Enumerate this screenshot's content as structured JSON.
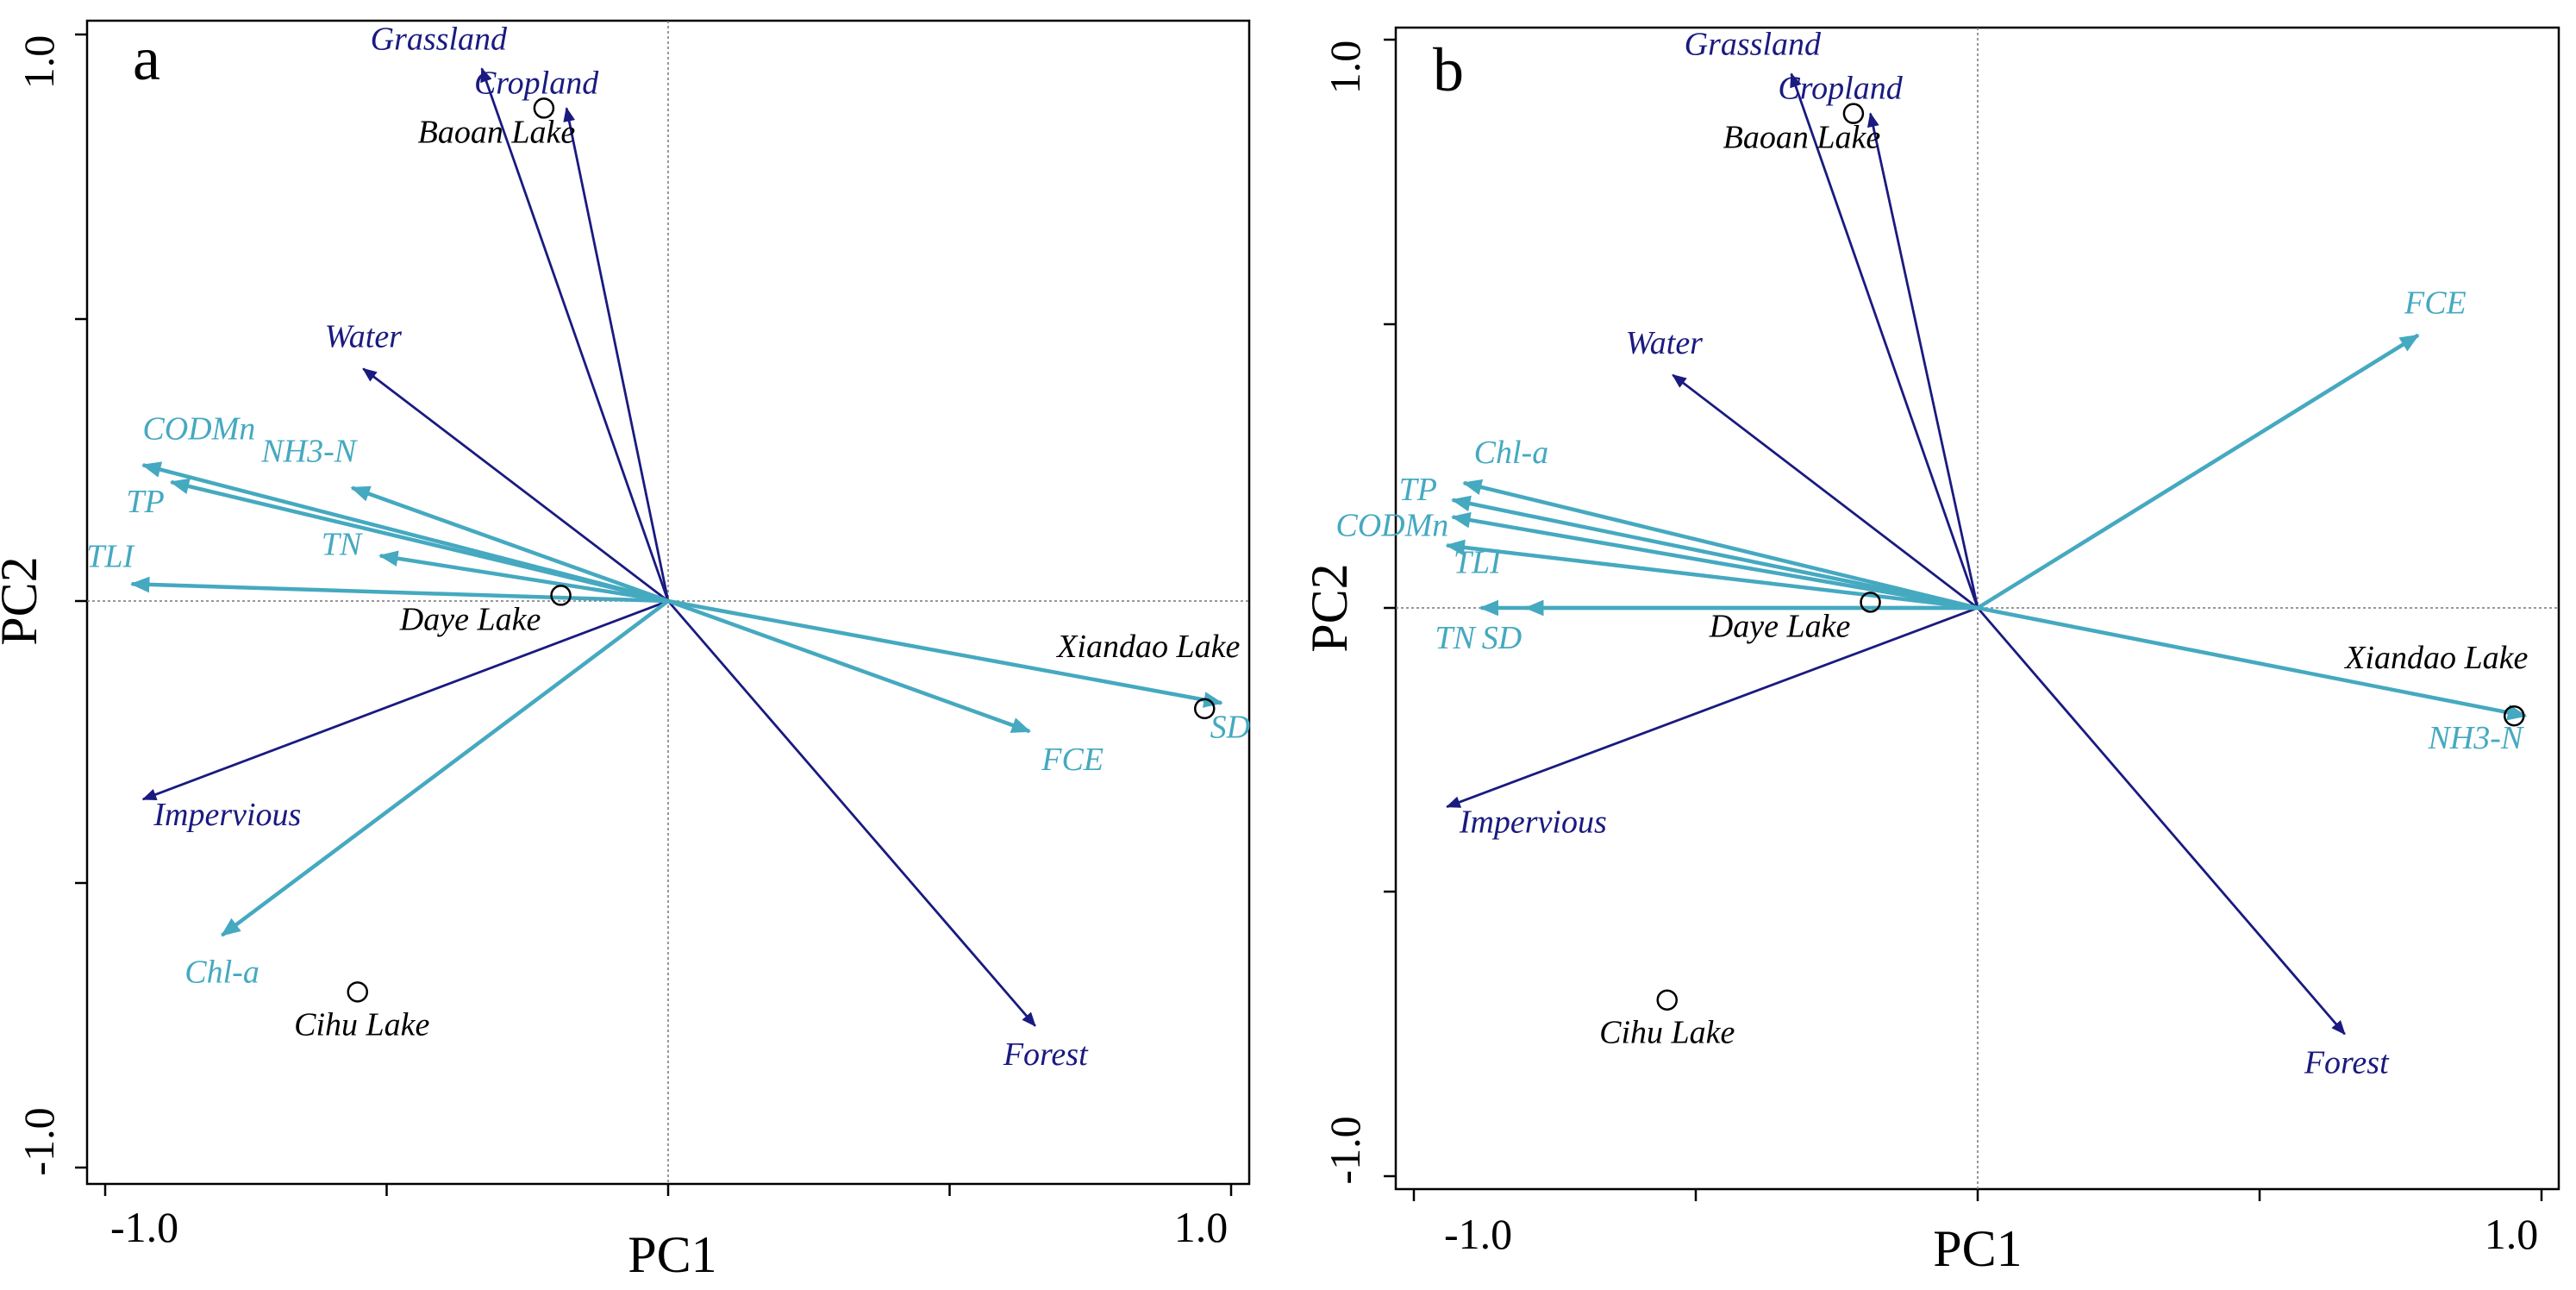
{
  "chart_data": [
    {
      "type": "biplot",
      "panel_label": "a",
      "xlabel": "PC1",
      "ylabel": "PC2",
      "xlim": [
        -1.0,
        1.0
      ],
      "ylim": [
        -1.0,
        1.0
      ],
      "x_tick_labels": [
        "-1.0",
        "1.0"
      ],
      "y_tick_labels": [
        "1.0",
        "-1.0"
      ],
      "colors": {
        "land_use": "#1a1a80",
        "water_quality": "#45a9c0"
      },
      "vectors": [
        {
          "name": "Grassland",
          "group": "land_use",
          "x": -0.33,
          "y": 0.94
        },
        {
          "name": "Cropland",
          "group": "land_use",
          "x": -0.18,
          "y": 0.87
        },
        {
          "name": "Water",
          "group": "land_use",
          "x": -0.54,
          "y": 0.41
        },
        {
          "name": "Impervious",
          "group": "land_use",
          "x": -0.93,
          "y": -0.35
        },
        {
          "name": "Forest",
          "group": "land_use",
          "x": 0.65,
          "y": -0.75
        },
        {
          "name": "CODMn",
          "group": "water_quality",
          "x": -0.93,
          "y": 0.24
        },
        {
          "name": "NH3-N",
          "group": "water_quality",
          "x": -0.56,
          "y": 0.2
        },
        {
          "name": "TP",
          "group": "water_quality",
          "x": -0.88,
          "y": 0.21
        },
        {
          "name": "TN",
          "group": "water_quality",
          "x": -0.51,
          "y": 0.08
        },
        {
          "name": "TLI",
          "group": "water_quality",
          "x": -0.95,
          "y": 0.03
        },
        {
          "name": "Chl-a",
          "group": "water_quality",
          "x": -0.79,
          "y": -0.59
        },
        {
          "name": "FCE",
          "group": "water_quality",
          "x": 0.64,
          "y": -0.23
        },
        {
          "name": "SD",
          "group": "water_quality",
          "x": 0.98,
          "y": -0.18
        }
      ],
      "sites": [
        {
          "name": "Baoan Lake",
          "x": -0.22,
          "y": 0.87
        },
        {
          "name": "Daye Lake",
          "x": -0.19,
          "y": 0.01
        },
        {
          "name": "Xiandao Lake",
          "x": 0.95,
          "y": -0.19
        },
        {
          "name": "Cihu Lake",
          "x": -0.55,
          "y": -0.69
        }
      ]
    },
    {
      "type": "biplot",
      "panel_label": "b",
      "xlabel": "PC1",
      "ylabel": "PC2",
      "xlim": [
        -1.0,
        1.0
      ],
      "ylim": [
        -1.0,
        1.0
      ],
      "x_tick_labels": [
        "-1.0",
        "1.0"
      ],
      "y_tick_labels": [
        "1.0",
        "-1.0"
      ],
      "colors": {
        "land_use": "#1a1a80",
        "water_quality": "#45a9c0"
      },
      "vectors": [
        {
          "name": "Grassland",
          "group": "land_use",
          "x": -0.33,
          "y": 0.94
        },
        {
          "name": "Cropland",
          "group": "land_use",
          "x": -0.19,
          "y": 0.87
        },
        {
          "name": "Water",
          "group": "land_use",
          "x": -0.54,
          "y": 0.41
        },
        {
          "name": "Impervious",
          "group": "land_use",
          "x": -0.94,
          "y": -0.35
        },
        {
          "name": "Forest",
          "group": "land_use",
          "x": 0.65,
          "y": -0.75
        },
        {
          "name": "FCE",
          "group": "water_quality",
          "x": 0.78,
          "y": 0.48
        },
        {
          "name": "Chl-a",
          "group": "water_quality",
          "x": -0.91,
          "y": 0.22
        },
        {
          "name": "TP",
          "group": "water_quality",
          "x": -0.93,
          "y": 0.19
        },
        {
          "name": "CODMn",
          "group": "water_quality",
          "x": -0.93,
          "y": 0.16
        },
        {
          "name": "TLI",
          "group": "water_quality",
          "x": -0.94,
          "y": 0.11
        },
        {
          "name": "TN",
          "group": "water_quality",
          "x": -0.88,
          "y": 0.0
        },
        {
          "name": "SD",
          "group": "water_quality",
          "x": -0.8,
          "y": 0.0
        },
        {
          "name": "NH3-N",
          "group": "water_quality",
          "x": 0.97,
          "y": -0.19
        }
      ],
      "sites": [
        {
          "name": "Baoan Lake",
          "x": -0.22,
          "y": 0.87
        },
        {
          "name": "Daye Lake",
          "x": -0.19,
          "y": 0.01
        },
        {
          "name": "Xiandao Lake",
          "x": 0.95,
          "y": -0.19
        },
        {
          "name": "Cihu Lake",
          "x": -0.55,
          "y": -0.69
        }
      ]
    }
  ]
}
